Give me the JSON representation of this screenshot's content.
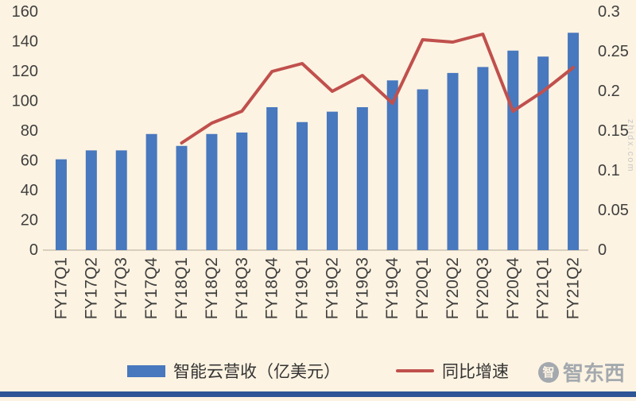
{
  "legend": {
    "bars": "智能云营收（亿美元）",
    "line": "同比增速"
  },
  "watermark": {
    "brand": "智东西",
    "brand_logo_glyph": "智",
    "site": "zhidx.com"
  },
  "chart_data": {
    "type": "bar",
    "title": "",
    "xlabel": "",
    "ylabel_left": "智能云营收（亿美元）",
    "ylabel_right": "同比增速",
    "categories": [
      "FY17Q1",
      "FY17Q2",
      "FY17Q3",
      "FY17Q4",
      "FY18Q1",
      "FY18Q2",
      "FY18Q3",
      "FY18Q4",
      "FY19Q1",
      "FY19Q2",
      "FY19Q3",
      "FY19Q4",
      "FY20Q1",
      "FY20Q2",
      "FY20Q3",
      "FY20Q4",
      "FY21Q1",
      "FY21Q2"
    ],
    "series": [
      {
        "name": "智能云营收（亿美元）",
        "type": "bar",
        "axis": "left",
        "values": [
          61,
          67,
          67,
          78,
          70,
          78,
          79,
          96,
          86,
          93,
          96,
          114,
          108,
          119,
          123,
          134,
          130,
          146
        ]
      },
      {
        "name": "同比增速",
        "type": "line",
        "axis": "right",
        "values": [
          null,
          null,
          null,
          null,
          0.135,
          0.16,
          0.175,
          0.225,
          0.235,
          0.2,
          0.22,
          0.185,
          0.265,
          0.262,
          0.272,
          0.175,
          0.2,
          0.23
        ]
      }
    ],
    "left_axis": {
      "min": 0,
      "max": 160,
      "ticks": [
        0,
        20,
        40,
        60,
        80,
        100,
        120,
        140,
        160
      ]
    },
    "right_axis": {
      "min": 0,
      "max": 0.3,
      "ticks": [
        0,
        0.05,
        0.1,
        0.15,
        0.2,
        0.25,
        0.3
      ]
    },
    "grid": false,
    "legend_position": "bottom",
    "colors": {
      "bar": "#4878be",
      "line": "#c0504d",
      "background": "#fdf3e2",
      "text": "#3f3f3f",
      "axis_line": "#b5ab99",
      "footer": "#2e5596"
    }
  }
}
